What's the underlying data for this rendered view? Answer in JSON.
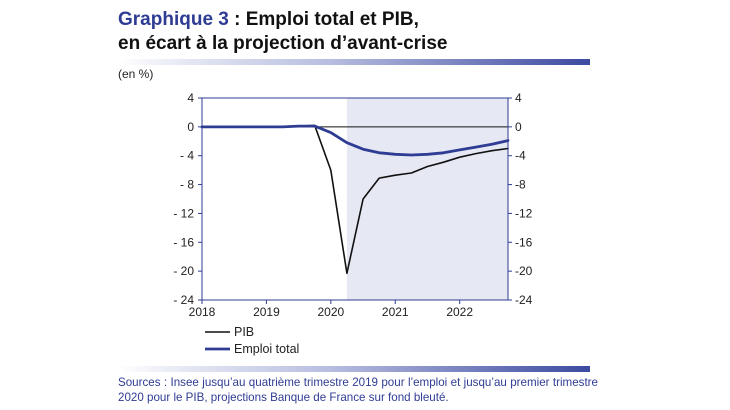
{
  "title": {
    "lead": "Graphique 3",
    "rest": " : Emploi total et PIB,",
    "line2": "en écart à la projection d’avant-crise"
  },
  "unit_label": "(en %)",
  "sources": "Sources : Insee jusqu’au quatrième trimestre 2019 pour l’emploi et jusqu’au premier trimestre 2020 pour le PIB, projections Banque de France sur fond bleuté.",
  "colors": {
    "pib": "#111111",
    "emploi": "#2f3c94",
    "projection_band": "#e6e8f4",
    "frame": "#2f3c94"
  },
  "chart_data": {
    "type": "line",
    "x_range": [
      2018.0,
      2022.75
    ],
    "ylim": [
      -24,
      4
    ],
    "y_ticks": [
      4,
      0,
      -4,
      -8,
      -12,
      -16,
      -20,
      -24
    ],
    "y_tick_labels_left": [
      "4",
      "0",
      "- 4",
      "- 8",
      "- 12",
      "- 16",
      "- 20",
      "- 24"
    ],
    "y_tick_labels_right": [
      "4",
      "0",
      "-4",
      "-8",
      "-12",
      "-16",
      "-20",
      "-24"
    ],
    "x_ticks": [
      2018,
      2019,
      2020,
      2021,
      2022
    ],
    "x_tick_labels": [
      "2018",
      "2019",
      "2020",
      "2021",
      "2022"
    ],
    "projection_start": 2020.25,
    "grid": false,
    "legend_position": "bottom-left",
    "series": [
      {
        "name": "PIB",
        "color": "#111111",
        "x": [
          2018.0,
          2018.25,
          2018.5,
          2018.75,
          2019.0,
          2019.25,
          2019.5,
          2019.75,
          2020.0,
          2020.25,
          2020.5,
          2020.75,
          2021.0,
          2021.25,
          2021.5,
          2021.75,
          2022.0,
          2022.25,
          2022.5,
          2022.75
        ],
        "y": [
          0.0,
          0.0,
          0.0,
          0.0,
          0.0,
          0.0,
          0.1,
          0.2,
          -6.0,
          -20.3,
          -10.0,
          -7.1,
          -6.7,
          -6.4,
          -5.5,
          -4.9,
          -4.2,
          -3.7,
          -3.3,
          -3.0
        ]
      },
      {
        "name": "Emploi total",
        "color": "#2f3c94",
        "x": [
          2018.0,
          2018.25,
          2018.5,
          2018.75,
          2019.0,
          2019.25,
          2019.5,
          2019.75,
          2020.0,
          2020.25,
          2020.5,
          2020.75,
          2021.0,
          2021.25,
          2021.5,
          2021.75,
          2022.0,
          2022.25,
          2022.5,
          2022.75
        ],
        "y": [
          0.0,
          0.0,
          0.0,
          0.0,
          0.0,
          0.0,
          0.1,
          0.1,
          -0.8,
          -2.2,
          -3.1,
          -3.6,
          -3.8,
          -3.9,
          -3.8,
          -3.6,
          -3.2,
          -2.8,
          -2.4,
          -1.9
        ]
      }
    ]
  }
}
